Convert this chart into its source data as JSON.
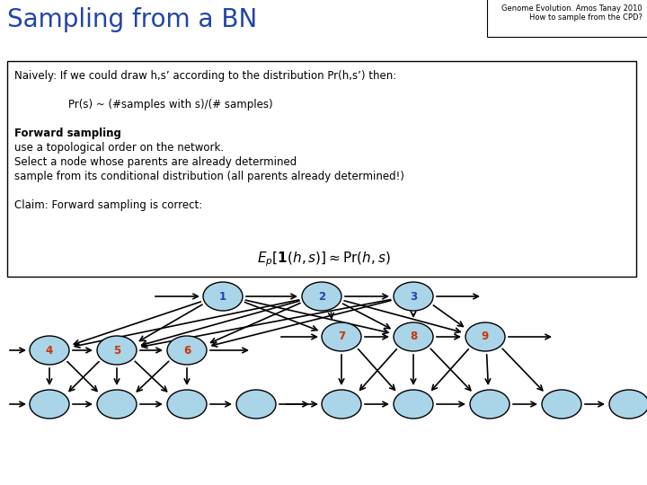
{
  "title": "Sampling from a BN",
  "header_line1": "Genome Evolution. Amos Tanay 2010",
  "header_line2": "How to sample from the CPD?",
  "bg_color": "#ffffff",
  "title_color": "#2244aa",
  "node_fill": "#aad4e8",
  "node_edge": "#000000",
  "node_label_color_default": "#2244aa",
  "node_label_color_orange": "#cc3300",
  "arrow_color": "#000000"
}
